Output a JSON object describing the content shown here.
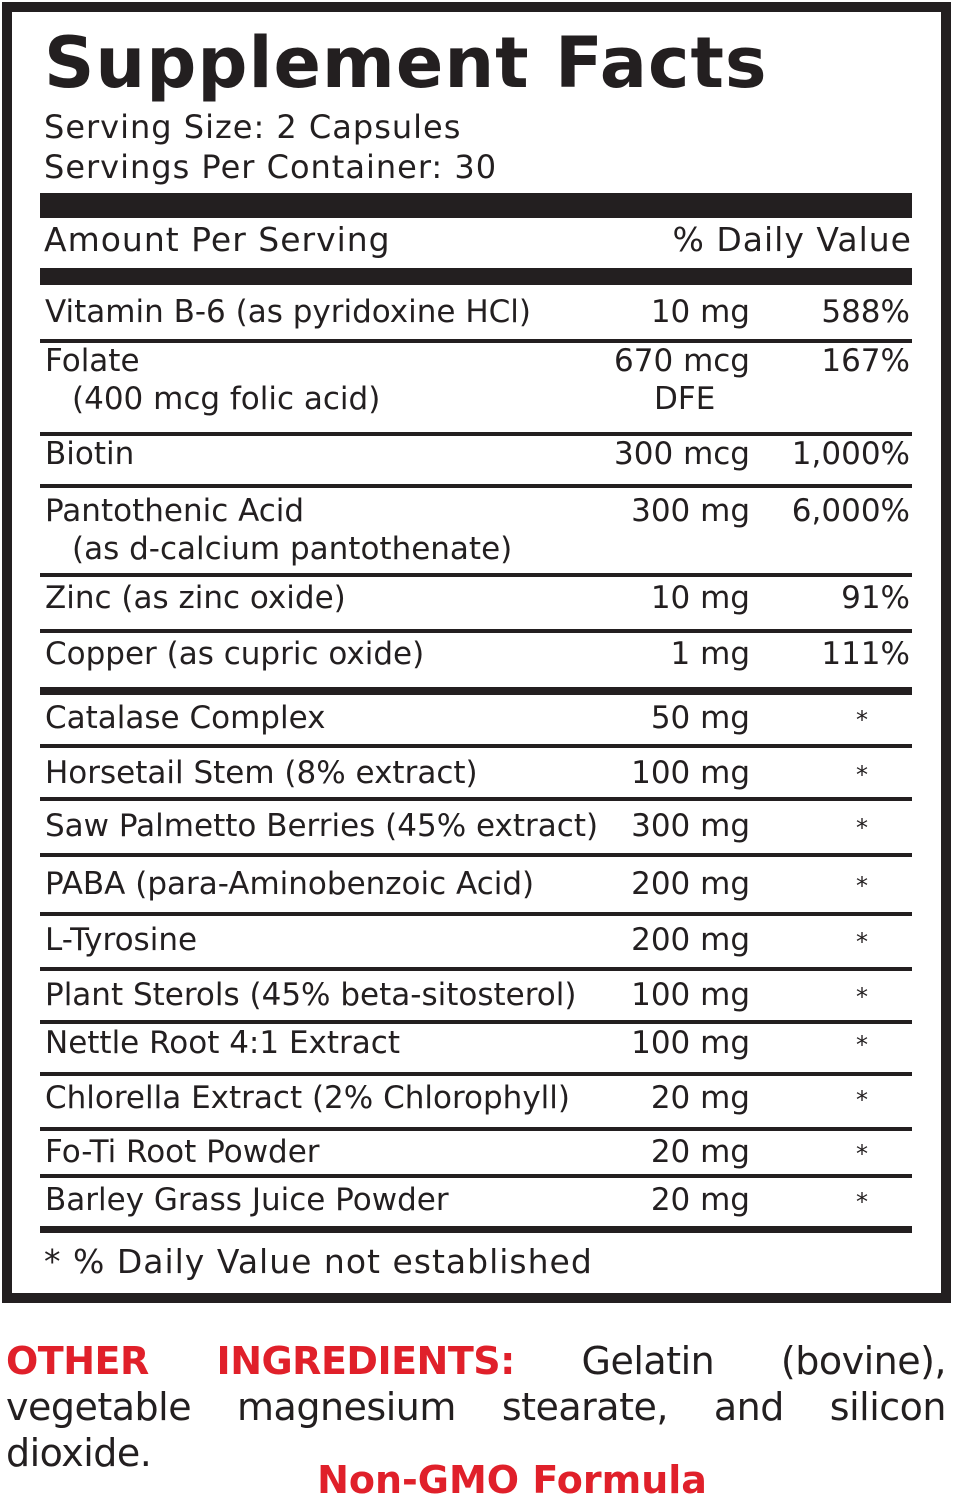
{
  "title": "Supplement Facts",
  "serving_size": "Serving Size: 2 Capsules",
  "servings_per_container": "Servings Per Container: 30",
  "header": {
    "amount": "Amount Per Serving",
    "dv": "% Daily Value"
  },
  "rows": [
    {
      "name": "Vitamin B-6 (as pyridoxine HCl)",
      "amount": "10 mg",
      "dv": "588%"
    },
    {
      "name": "Folate",
      "sub": "(400 mcg folic acid)",
      "amount": "670 mcg",
      "amount2": "DFE",
      "dv": "167%"
    },
    {
      "name": "Biotin",
      "amount": "300 mcg",
      "dv": "1,000%"
    },
    {
      "name": "Pantothenic Acid",
      "sub": "(as d-calcium pantothenate)",
      "amount": "300 mg",
      "dv": "6,000%"
    },
    {
      "name": "Zinc (as zinc oxide)",
      "amount": "10 mg",
      "dv": "91%"
    },
    {
      "name": "Copper (as cupric oxide)",
      "amount": "1 mg",
      "dv": "111%"
    },
    {
      "name": "Catalase Complex",
      "amount": "50 mg",
      "dv": "*"
    },
    {
      "name": "Horsetail Stem (8% extract)",
      "amount": "100 mg",
      "dv": "*"
    },
    {
      "name": "Saw Palmetto Berries (45% extract)",
      "amount": "300 mg",
      "dv": "*"
    },
    {
      "name": "PABA (para-Aminobenzoic Acid)",
      "amount": "200 mg",
      "dv": "*"
    },
    {
      "name": "L-Tyrosine",
      "amount": "200 mg",
      "dv": "*"
    },
    {
      "name": "Plant Sterols (45% beta-sitosterol)",
      "amount": "100 mg",
      "dv": "*"
    },
    {
      "name": "Nettle Root 4:1 Extract",
      "amount": "100 mg",
      "dv": "*"
    },
    {
      "name": "Chlorella Extract (2% Chlorophyll)",
      "amount": "20 mg",
      "dv": "*"
    },
    {
      "name": "Fo-Ti Root Powder",
      "amount": "20 mg",
      "dv": "*"
    },
    {
      "name": "Barley Grass Juice Powder",
      "amount": "20 mg",
      "dv": "*"
    }
  ],
  "footnote": "* % Daily Value not established",
  "other_ingredients": {
    "label": "OTHER INGREDIENTS:",
    "text": "Gelatin (bovine), vegetable magnesium stearate, and silicon dioxide."
  },
  "badge": "Non-GMO Formula",
  "colors": {
    "text": "#231f20",
    "accent": "#e0202a"
  }
}
